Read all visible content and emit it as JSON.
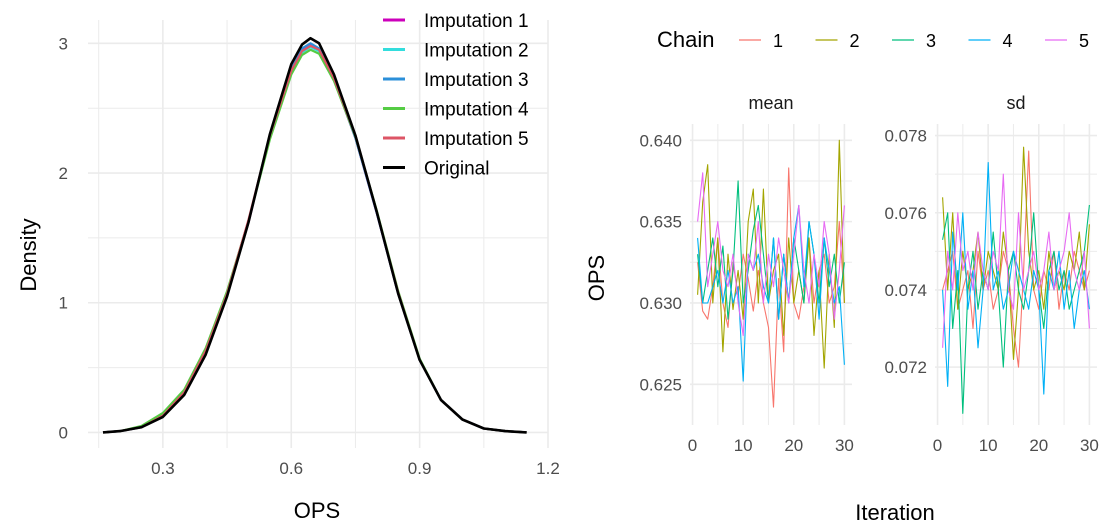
{
  "chart_data": [
    {
      "type": "line",
      "xlabel": "OPS",
      "ylabel": "Density",
      "xlim": [
        0.125,
        1.2
      ],
      "ylim": [
        -0.12,
        3.18
      ],
      "xticks": [
        0.3,
        0.6,
        0.9,
        1.2
      ],
      "xtick_labels": [
        "0.3",
        "0.6",
        "0.9",
        "1.2"
      ],
      "yticks": [
        0,
        1,
        2,
        3
      ],
      "ytick_labels": [
        "0",
        "1",
        "2",
        "3"
      ],
      "grid": true,
      "legend_position": "top-right",
      "series": [
        {
          "name": "Imputation 1",
          "color": "#cc00bb",
          "x": [
            0.16,
            0.2,
            0.25,
            0.3,
            0.35,
            0.4,
            0.45,
            0.5,
            0.55,
            0.6,
            0.625,
            0.645,
            0.665,
            0.7,
            0.75,
            0.8,
            0.85,
            0.9,
            0.95,
            1.0,
            1.05,
            1.1,
            1.15
          ],
          "y": [
            0.0,
            0.01,
            0.04,
            0.13,
            0.3,
            0.62,
            1.06,
            1.62,
            2.28,
            2.8,
            2.95,
            2.99,
            2.95,
            2.72,
            2.27,
            1.69,
            1.07,
            0.56,
            0.25,
            0.1,
            0.03,
            0.01,
            0.0
          ]
        },
        {
          "name": "Imputation 2",
          "color": "#33dddd",
          "x": [
            0.16,
            0.2,
            0.25,
            0.3,
            0.35,
            0.4,
            0.45,
            0.5,
            0.55,
            0.6,
            0.625,
            0.645,
            0.665,
            0.7,
            0.75,
            0.8,
            0.85,
            0.9,
            0.95,
            1.0,
            1.05,
            1.1,
            1.15
          ],
          "y": [
            0.0,
            0.01,
            0.04,
            0.13,
            0.31,
            0.63,
            1.08,
            1.63,
            2.27,
            2.78,
            2.93,
            2.97,
            2.94,
            2.72,
            2.28,
            1.7,
            1.08,
            0.56,
            0.25,
            0.1,
            0.03,
            0.01,
            0.0
          ]
        },
        {
          "name": "Imputation 3",
          "color": "#2b8fd9",
          "x": [
            0.16,
            0.2,
            0.25,
            0.3,
            0.35,
            0.4,
            0.45,
            0.5,
            0.55,
            0.6,
            0.625,
            0.645,
            0.665,
            0.7,
            0.75,
            0.8,
            0.85,
            0.9,
            0.95,
            1.0,
            1.05,
            1.1,
            1.15
          ],
          "y": [
            0.0,
            0.01,
            0.04,
            0.13,
            0.3,
            0.62,
            1.07,
            1.63,
            2.29,
            2.8,
            2.96,
            3.0,
            2.96,
            2.73,
            2.27,
            1.69,
            1.07,
            0.56,
            0.25,
            0.1,
            0.03,
            0.01,
            0.0
          ]
        },
        {
          "name": "Imputation 4",
          "color": "#55cc44",
          "x": [
            0.16,
            0.2,
            0.25,
            0.3,
            0.35,
            0.4,
            0.45,
            0.5,
            0.55,
            0.6,
            0.625,
            0.645,
            0.665,
            0.7,
            0.75,
            0.8,
            0.85,
            0.9,
            0.95,
            1.0,
            1.05,
            1.1,
            1.15
          ],
          "y": [
            0.0,
            0.01,
            0.05,
            0.15,
            0.33,
            0.65,
            1.09,
            1.63,
            2.26,
            2.76,
            2.91,
            2.95,
            2.92,
            2.71,
            2.28,
            1.71,
            1.09,
            0.57,
            0.25,
            0.1,
            0.03,
            0.01,
            0.0
          ]
        },
        {
          "name": "Imputation 5",
          "color": "#dd5566",
          "x": [
            0.16,
            0.2,
            0.25,
            0.3,
            0.35,
            0.4,
            0.45,
            0.5,
            0.55,
            0.6,
            0.625,
            0.645,
            0.665,
            0.7,
            0.75,
            0.8,
            0.85,
            0.9,
            0.95,
            1.0,
            1.05,
            1.1,
            1.15
          ],
          "y": [
            0.0,
            0.01,
            0.04,
            0.13,
            0.31,
            0.63,
            1.07,
            1.64,
            2.29,
            2.79,
            2.94,
            2.98,
            2.95,
            2.73,
            2.29,
            1.7,
            1.08,
            0.56,
            0.25,
            0.1,
            0.03,
            0.01,
            0.0
          ]
        },
        {
          "name": "Original",
          "color": "#000000",
          "x": [
            0.16,
            0.2,
            0.25,
            0.3,
            0.35,
            0.4,
            0.45,
            0.5,
            0.55,
            0.6,
            0.625,
            0.645,
            0.665,
            0.7,
            0.75,
            0.8,
            0.85,
            0.9,
            0.95,
            1.0,
            1.05,
            1.1,
            1.15
          ],
          "y": [
            0.0,
            0.01,
            0.04,
            0.12,
            0.29,
            0.6,
            1.05,
            1.62,
            2.3,
            2.84,
            2.99,
            3.04,
            3.0,
            2.76,
            2.29,
            1.7,
            1.07,
            0.56,
            0.25,
            0.1,
            0.03,
            0.01,
            0.0
          ]
        }
      ]
    },
    {
      "type": "line",
      "facet": "mean",
      "xlabel": "Iteration",
      "ylabel": "OPS",
      "xlim": [
        -0.5,
        31.5
      ],
      "ylim": [
        0.6225,
        0.641
      ],
      "xticks": [
        0,
        10,
        20,
        30
      ],
      "xtick_labels": [
        "0",
        "10",
        "20",
        "30"
      ],
      "yticks": [
        0.625,
        0.63,
        0.635,
        0.64
      ],
      "ytick_labels": [
        "0.625",
        "0.630",
        "0.635",
        "0.640"
      ],
      "grid": true,
      "x": [
        1,
        2,
        3,
        4,
        5,
        6,
        7,
        8,
        9,
        10,
        11,
        12,
        13,
        14,
        15,
        16,
        17,
        18,
        19,
        20,
        21,
        22,
        23,
        24,
        25,
        26,
        27,
        28,
        29,
        30
      ],
      "series": [
        {
          "name": "1",
          "color": "#f8766d",
          "values": [
            0.6325,
            0.6295,
            0.629,
            0.631,
            0.634,
            0.63,
            0.6285,
            0.6325,
            0.6305,
            0.633,
            0.6315,
            0.6295,
            0.632,
            0.63,
            0.6285,
            0.6236,
            0.6315,
            0.627,
            0.6383,
            0.63,
            0.629,
            0.631,
            0.634,
            0.63,
            0.632,
            0.633,
            0.63,
            0.631,
            0.635,
            0.63
          ]
        },
        {
          "name": "2",
          "color": "#a3a500",
          "values": [
            0.6305,
            0.6362,
            0.6385,
            0.63,
            0.634,
            0.627,
            0.633,
            0.6296,
            0.632,
            0.629,
            0.635,
            0.637,
            0.63,
            0.637,
            0.63,
            0.632,
            0.633,
            0.628,
            0.634,
            0.63,
            0.632,
            0.63,
            0.634,
            0.628,
            0.632,
            0.626,
            0.633,
            0.6285,
            0.64,
            0.63
          ]
        },
        {
          "name": "3",
          "color": "#00bf7d",
          "values": [
            0.633,
            0.63,
            0.632,
            0.634,
            0.631,
            0.6335,
            0.629,
            0.632,
            0.6375,
            0.63,
            0.632,
            0.6345,
            0.636,
            0.633,
            0.63,
            0.634,
            0.629,
            0.633,
            0.63,
            0.634,
            0.632,
            0.63,
            0.635,
            0.633,
            0.63,
            0.634,
            0.631,
            0.633,
            0.63,
            0.6325
          ]
        },
        {
          "name": "4",
          "color": "#00b0f6",
          "values": [
            0.634,
            0.63,
            0.63,
            0.631,
            0.632,
            0.63,
            0.632,
            0.63,
            0.631,
            0.6252,
            0.633,
            0.632,
            0.633,
            0.631,
            0.63,
            0.634,
            0.629,
            0.633,
            0.63,
            0.634,
            0.636,
            0.631,
            0.635,
            0.633,
            0.629,
            0.634,
            0.632,
            0.63,
            0.631,
            0.6262
          ]
        },
        {
          "name": "5",
          "color": "#e76bf3",
          "values": [
            0.635,
            0.638,
            0.631,
            0.633,
            0.635,
            0.632,
            0.631,
            0.633,
            0.63,
            0.628,
            0.633,
            0.632,
            0.635,
            0.63,
            0.633,
            0.631,
            0.634,
            0.632,
            0.63,
            0.633,
            0.636,
            0.632,
            0.63,
            0.633,
            0.631,
            0.635,
            0.633,
            0.629,
            0.632,
            0.636
          ]
        }
      ]
    },
    {
      "type": "line",
      "facet": "sd",
      "xlabel": "Iteration",
      "ylabel": "OPS",
      "xlim": [
        -0.5,
        31.5
      ],
      "ylim": [
        0.0705,
        0.0783
      ],
      "xticks": [
        0,
        10,
        20,
        30
      ],
      "xtick_labels": [
        "0",
        "10",
        "20",
        "30"
      ],
      "yticks": [
        0.072,
        0.074,
        0.076,
        0.078
      ],
      "ytick_labels": [
        "0.072",
        "0.074",
        "0.076",
        "0.078"
      ],
      "grid": true,
      "x": [
        1,
        2,
        3,
        4,
        5,
        6,
        7,
        8,
        9,
        10,
        11,
        12,
        13,
        14,
        15,
        16,
        17,
        18,
        19,
        20,
        21,
        22,
        23,
        24,
        25,
        26,
        27,
        28,
        29,
        30
      ],
      "series": [
        {
          "name": "1",
          "color": "#f8766d",
          "values": [
            0.074,
            0.0745,
            0.075,
            0.0735,
            0.074,
            0.0745,
            0.073,
            0.075,
            0.074,
            0.0745,
            0.0735,
            0.074,
            0.075,
            0.0745,
            0.073,
            0.072,
            0.0745,
            0.0776,
            0.074,
            0.0735,
            0.0745,
            0.074,
            0.075,
            0.0735,
            0.0745,
            0.074,
            0.075,
            0.0745,
            0.074,
            0.0745
          ]
        },
        {
          "name": "2",
          "color": "#a3a500",
          "values": [
            0.0764,
            0.074,
            0.076,
            0.0735,
            0.075,
            0.074,
            0.0745,
            0.0755,
            0.074,
            0.075,
            0.0745,
            0.074,
            0.0755,
            0.0745,
            0.0722,
            0.074,
            0.0777,
            0.075,
            0.074,
            0.0745,
            0.0735,
            0.075,
            0.074,
            0.0745,
            0.074,
            0.075,
            0.0745,
            0.0755,
            0.074,
            0.0757
          ]
        },
        {
          "name": "3",
          "color": "#00bf7d",
          "values": [
            0.0753,
            0.076,
            0.073,
            0.0745,
            0.0708,
            0.074,
            0.075,
            0.0735,
            0.0745,
            0.074,
            0.0755,
            0.074,
            0.072,
            0.0745,
            0.075,
            0.074,
            0.0735,
            0.0745,
            0.076,
            0.074,
            0.073,
            0.0745,
            0.075,
            0.074,
            0.0745,
            0.0735,
            0.074,
            0.0745,
            0.075,
            0.0762
          ]
        },
        {
          "name": "4",
          "color": "#00b0f6",
          "values": [
            0.074,
            0.0715,
            0.0755,
            0.074,
            0.076,
            0.0735,
            0.0745,
            0.0725,
            0.074,
            0.0773,
            0.074,
            0.0745,
            0.0735,
            0.074,
            0.075,
            0.0745,
            0.074,
            0.0735,
            0.0745,
            0.074,
            0.0713,
            0.0745,
            0.074,
            0.075,
            0.0735,
            0.0745,
            0.073,
            0.074,
            0.0745,
            0.0735
          ]
        },
        {
          "name": "5",
          "color": "#e76bf3",
          "values": [
            0.0725,
            0.075,
            0.074,
            0.076,
            0.0745,
            0.075,
            0.074,
            0.0755,
            0.0745,
            0.074,
            0.075,
            0.0745,
            0.077,
            0.074,
            0.0735,
            0.076,
            0.074,
            0.0745,
            0.075,
            0.074,
            0.0745,
            0.0755,
            0.074,
            0.0745,
            0.075,
            0.076,
            0.0745,
            0.074,
            0.075,
            0.073
          ]
        }
      ]
    }
  ],
  "legend_right": {
    "title": "Chain",
    "labels": [
      "1",
      "2",
      "3",
      "4",
      "5"
    ],
    "colors": [
      "#f8766d",
      "#a3a500",
      "#00bf7d",
      "#00b0f6",
      "#e76bf3"
    ]
  },
  "colors": {
    "grid": "#ebebeb",
    "axis_text": "#4d4d4d",
    "title_text": "#000000"
  }
}
